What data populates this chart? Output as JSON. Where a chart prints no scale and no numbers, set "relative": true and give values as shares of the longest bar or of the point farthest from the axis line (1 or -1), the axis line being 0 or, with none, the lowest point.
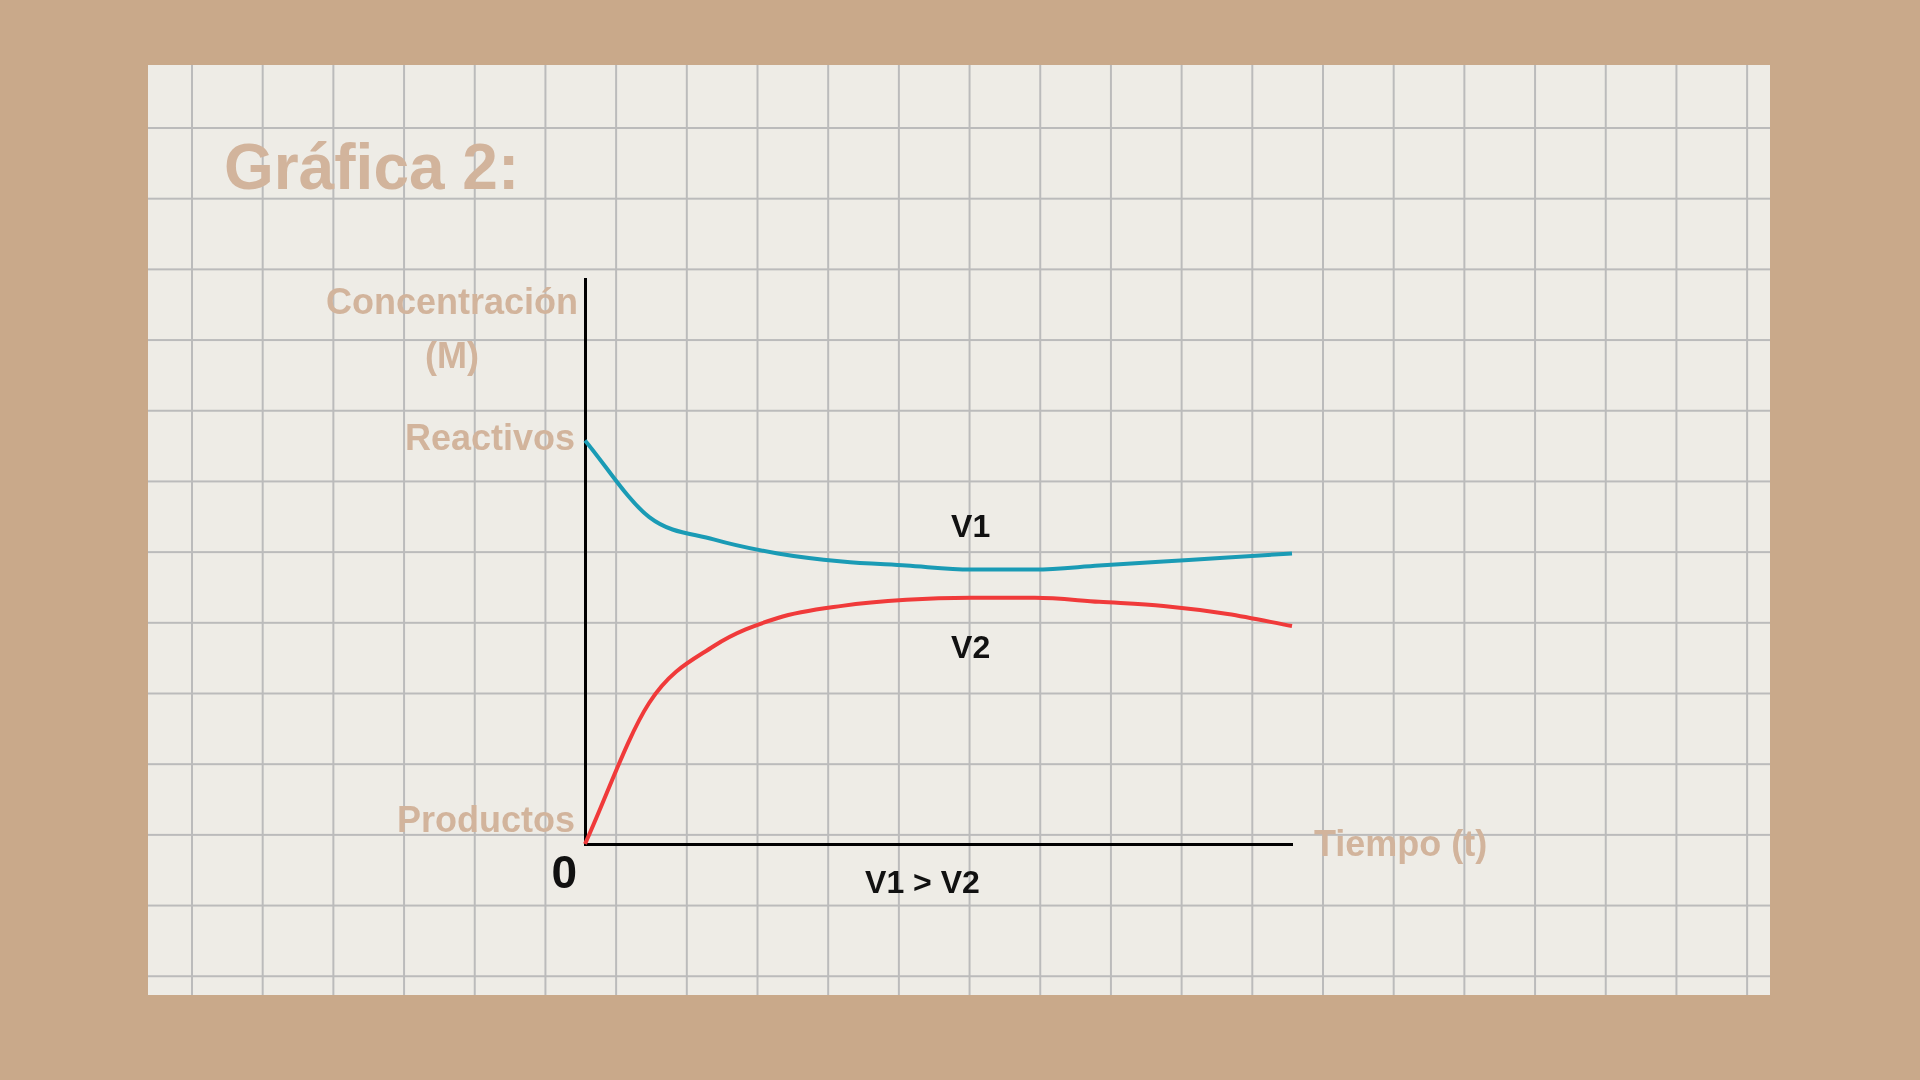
{
  "chart_data": {
    "type": "line",
    "title": "Gráfica 2:",
    "xlabel": "Tiempo (t)",
    "ylabel": "Concentración (M)",
    "relative": true,
    "categories": [
      null,
      null,
      null,
      null,
      null,
      null,
      null,
      null,
      null,
      null,
      null,
      null
    ],
    "series": [
      {
        "name": "V1",
        "color": "#1a9bb5",
        "values": [
          1.0,
          0.81,
          0.755,
          0.72,
          0.7,
          0.69,
          0.68,
          0.68,
          0.69,
          0.7,
          0.71,
          0.72
        ]
      },
      {
        "name": "V2",
        "color": "#f03a3a",
        "values": [
          0,
          0.35,
          0.49,
          0.56,
          0.59,
          0.605,
          0.61,
          0.61,
          0.6,
          0.59,
          0.57,
          0.54
        ]
      }
    ],
    "annotations": [
      "Reactivos",
      "Productos",
      "0",
      "V1 > V2"
    ],
    "legend": false,
    "grid": false,
    "marker": "none",
    "line_style": "solid"
  }
}
